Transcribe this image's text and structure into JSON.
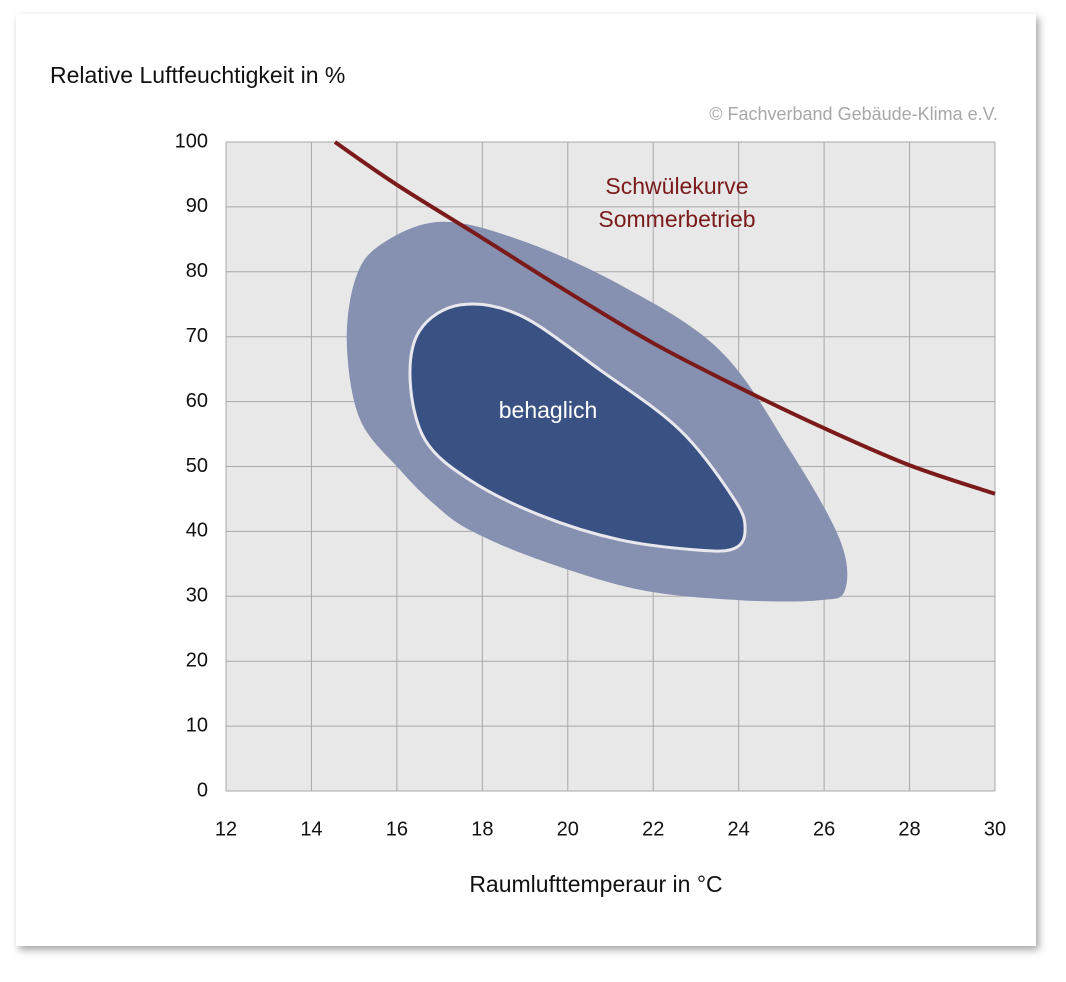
{
  "chart_data": {
    "type": "line",
    "y_label": "Relative Luftfeuchtigkeit in %",
    "x_label": "Raumlufttemperaur in °C",
    "source": "© Fachverband Gebäude-Klima e.V.",
    "annotations": [
      "Schwülekurve",
      "Sommerbetrieb",
      "behaglich"
    ],
    "xlim": [
      12,
      30
    ],
    "xticks": [
      12,
      14,
      16,
      18,
      20,
      22,
      24,
      26,
      28,
      30
    ],
    "ylim": [
      0,
      100
    ],
    "yticks": [
      0,
      10,
      20,
      30,
      40,
      50,
      60,
      70,
      80,
      90,
      100
    ],
    "grid": true,
    "series": [
      {
        "color": "#8690b0",
        "closed": true,
        "x": [
          14.83,
          15.02,
          15.6,
          17.01,
          18.88,
          21.22,
          23.56,
          25.2,
          26.37,
          26.49,
          25.9,
          24.03,
          21.69,
          19.35,
          17.71,
          16.89,
          16.07,
          15.14
        ],
        "values": [
          68.7,
          78.7,
          84.1,
          87.7,
          84.9,
          78.0,
          67.9,
          52.5,
          38.7,
          31.0,
          29.4,
          29.4,
          31.0,
          35.6,
          40.2,
          44.1,
          49.5,
          57.2
        ]
      },
      {
        "color": "#3a5283",
        "closed": true,
        "outline": "#e8e8ee",
        "x": [
          16.31,
          16.54,
          17.48,
          18.88,
          20.75,
          22.63,
          23.91,
          24.15,
          23.91,
          23.1,
          21.22,
          19.35,
          17.71,
          16.66
        ],
        "values": [
          63.3,
          71.0,
          74.9,
          73.3,
          64.9,
          55.6,
          44.8,
          40.2,
          37.4,
          37.1,
          38.7,
          42.5,
          47.9,
          54.1
        ]
      },
      {
        "color": "#7b1a1a",
        "closed": false,
        "x": [
          14.55,
          16,
          18,
          20,
          22,
          24,
          26,
          28,
          30
        ],
        "values": [
          100,
          93.4,
          85.2,
          76.9,
          69.0,
          62.2,
          55.9,
          50.2,
          45.8
        ]
      }
    ]
  }
}
